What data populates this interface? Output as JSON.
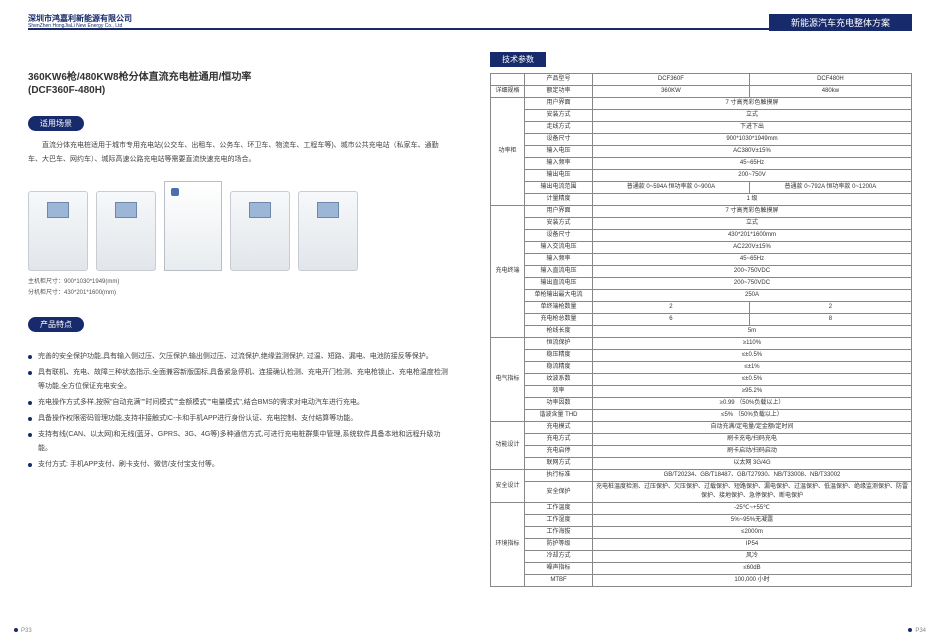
{
  "header": {
    "company": "深圳市鸿嘉利新能源有限公司",
    "company_en": "ShenZhen HongJiaLi New Energy Co., Ltd",
    "banner": "新能源汽车充电整体方案"
  },
  "left": {
    "title": "360KW6枪/480KW8枪分体直流充电桩通用/恒功率",
    "subtitle": "(DCF360F-480H)",
    "pill_scene": "适用场景",
    "desc": "直流分体充电桩适用于城市专用充电站(公交车、出租车、公务车、环卫车、物流车、工程车等)、城市公共充电站（私家车、通勤车、大巴车、网约车）、城际高速公路充电站等需要直流快速充电的场合。",
    "dim1": "主机柜尺寸：900*1030*1949(mm)",
    "dim2": "分机柜尺寸：430*201*1600(mm)",
    "pill_feat": "产品特点",
    "features": [
      "完善的安全保护功能,具有输入侧过压、欠压保护,输出侧过压、过流保护,绝缘监测保护, 过温、短路、漏电、电池防接反等保护。",
      "具有联机、充电、故障三种状态指示,全面兼容新版国标,具备紧急停机、连接确认检测、充电开门检测、充电枪锁止、充电枪温度检测等功能,全方位保证充电安全。",
      "充电操作方式多样,按照\"自动充满\"\"时间模式\"\"金额模式\"\"电量模式\",结合BMS的需求对电动汽车进行充电。",
      "具备操作权限密码管理功能,支持非接触式IC-卡和手机APP进行身份认证、充电控制、支付结算等功能。",
      "支持有线(CAN、以太网)和无线(蓝牙、GPRS、3G、4G等)多种通信方式,可进行充电桩群集中管理,系统软件具备本地和远程升级功能。",
      "支付方式: 手机APP支付、刷卡支付、微信/支付宝支付等。"
    ]
  },
  "right": {
    "param_title": "技术参数",
    "t": {
      "h1": "产品型号",
      "m1a": "DCF360F",
      "m1b": "DCF480H",
      "cat0": "详细规格",
      "l0": "额定功率",
      "v0a": "360KW",
      "v0b": "480kw",
      "cat1": "功率柜",
      "rows1": [
        {
          "l": "用户界面",
          "v": "7 寸高亮彩色触摸屏"
        },
        {
          "l": "安装方式",
          "v": "立式"
        },
        {
          "l": "走线方式",
          "v": "下进下出"
        },
        {
          "l": "设备尺寸",
          "v": "900*1030*1949mm"
        },
        {
          "l": "输入电压",
          "v": "AC380V±15%"
        },
        {
          "l": "输入频率",
          "v": "45~65Hz"
        },
        {
          "l": "输出电压",
          "v": "200~750V"
        },
        {
          "l": "输出电流范围",
          "v2": [
            "普通款 0~594A 恒功率款 0~900A",
            "普通款 0~792A 恒功率款 0~1200A"
          ]
        },
        {
          "l": "计量精度",
          "v": "1 级"
        }
      ],
      "cat2": "充电终端",
      "rows2": [
        {
          "l": "用户界面",
          "v": "7 寸高亮彩色触摸屏"
        },
        {
          "l": "安装方式",
          "v": "立式"
        },
        {
          "l": "设备尺寸",
          "v": "430*201*1600mm"
        },
        {
          "l": "输入交流电压",
          "v": "AC220V±15%"
        },
        {
          "l": "输入频率",
          "v": "45~65Hz"
        },
        {
          "l": "输入直流电压",
          "v": "200~750VDC"
        },
        {
          "l": "输出直流电压",
          "v": "200~750VDC"
        },
        {
          "l": "单枪输出最大电流",
          "v": "250A"
        },
        {
          "l": "单终端枪数量",
          "v2": [
            "2",
            "2"
          ]
        },
        {
          "l": "充电枪总数量",
          "v2": [
            "6",
            "8"
          ]
        },
        {
          "l": "枪线长度",
          "v": "5m"
        }
      ],
      "cat3": "电气指标",
      "rows3": [
        {
          "l": "恒流保护",
          "v": "≥110%"
        },
        {
          "l": "稳压精度",
          "v": "≤±0.5%"
        },
        {
          "l": "稳流精度",
          "v": "≤±1%"
        },
        {
          "l": "纹波系数",
          "v": "≤±0.5%"
        },
        {
          "l": "效率",
          "v": "≥95.2%"
        },
        {
          "l": "功率因数",
          "v": "≥0.99   （50%负载以上）"
        },
        {
          "l": "谐波含量 THD",
          "v": "≤5%  （50%负载以上）"
        }
      ],
      "cat4": "功能设计",
      "rows4": [
        {
          "l": "充电模式",
          "v": "自动充满/定电量/定金额/定时间"
        },
        {
          "l": "充电方式",
          "v": "刷卡充电/扫码充电"
        },
        {
          "l": "充电启停",
          "v": "刷卡启动/扫码启动"
        },
        {
          "l": "联网方式",
          "v": "以太网 3G/4G"
        }
      ],
      "cat5": "安全设计",
      "rows5": [
        {
          "l": "执行标准",
          "v": "GB/T20234、GB/T18487、GB/T27930、NB/T33008、NB/T33002"
        },
        {
          "l": "安全保护",
          "v": "充电桩温度检测、过压保护、欠压保护、过载保护、短路保护、漏电保护、过温保护、低温保护、绝缘监测保护、防雷保护、接地保护、急停保护、断电保护"
        }
      ],
      "cat6": "环境指标",
      "rows6": [
        {
          "l": "工作温度",
          "v": "-25℃~+55℃"
        },
        {
          "l": "工作湿度",
          "v": "5%~95%无凝露"
        },
        {
          "l": "工作海拔",
          "v": "≤2000m"
        },
        {
          "l": "防护等级",
          "v": "IP54"
        },
        {
          "l": "冷却方式",
          "v": "风冷"
        },
        {
          "l": "噪声指标",
          "v": "≤60dB"
        },
        {
          "l": "MTBF",
          "v": "100,000 小时"
        }
      ]
    }
  },
  "pnum": {
    "l": "P33",
    "r": "P34"
  }
}
